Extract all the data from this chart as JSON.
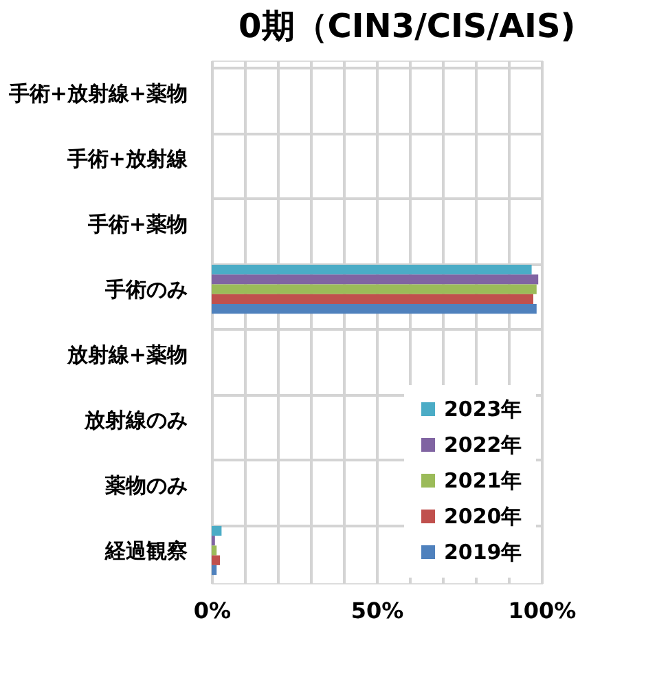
{
  "chart_data": {
    "type": "bar",
    "orientation": "horizontal",
    "title": "0期（CIN3/CIS/AIS)",
    "categories": [
      "手術+放射線+薬物",
      "手術+放射線",
      "手術+薬物",
      "手術のみ",
      "放射線+薬物",
      "放射線のみ",
      "薬物のみ",
      "経過観察"
    ],
    "series": [
      {
        "name": "2023年",
        "color": "#4bacc6",
        "values": [
          0,
          0,
          0,
          97,
          0,
          0,
          0,
          3
        ]
      },
      {
        "name": "2022年",
        "color": "#8064a2",
        "values": [
          0,
          0,
          0,
          99,
          0,
          0,
          0,
          1
        ]
      },
      {
        "name": "2021年",
        "color": "#9bbb59",
        "values": [
          0,
          0,
          0,
          98.5,
          0,
          0,
          0,
          1.5
        ]
      },
      {
        "name": "2020年",
        "color": "#c0504d",
        "values": [
          0,
          0,
          0,
          97.5,
          0,
          0,
          0,
          2.5
        ]
      },
      {
        "name": "2019年",
        "color": "#4f81bd",
        "values": [
          0,
          0,
          0,
          98.5,
          0,
          0,
          0,
          1.5
        ]
      }
    ],
    "xlim": [
      0,
      100
    ],
    "xticks": [
      {
        "value": 0,
        "label": "0%"
      },
      {
        "value": 10,
        "label": null
      },
      {
        "value": 20,
        "label": null
      },
      {
        "value": 30,
        "label": null
      },
      {
        "value": 40,
        "label": null
      },
      {
        "value": 50,
        "label": "50%"
      },
      {
        "value": 60,
        "label": null
      },
      {
        "value": 70,
        "label": null
      },
      {
        "value": 80,
        "label": null
      },
      {
        "value": 90,
        "label": null
      },
      {
        "value": 100,
        "label": "100%"
      }
    ],
    "grid": true,
    "legend": "bottom right"
  }
}
